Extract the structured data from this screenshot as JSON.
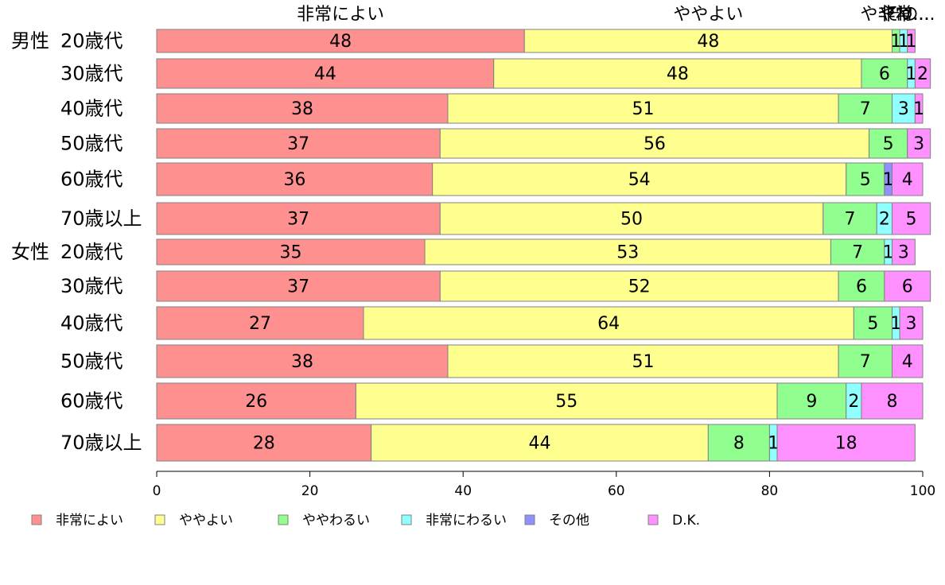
{
  "chart_data": {
    "type": "bar",
    "orientation": "horizontal",
    "stacked": true,
    "categories": [
      {
        "group": "男性",
        "label": "20歳代"
      },
      {
        "group": "",
        "label": "30歳代"
      },
      {
        "group": "",
        "label": "40歳代"
      },
      {
        "group": "",
        "label": "50歳代"
      },
      {
        "group": "",
        "label": "60歳代"
      },
      {
        "group": "",
        "label": "70歳以上"
      },
      {
        "group": "女性",
        "label": "20歳代"
      },
      {
        "group": "",
        "label": "30歳代"
      },
      {
        "group": "",
        "label": "40歳代"
      },
      {
        "group": "",
        "label": "50歳代"
      },
      {
        "group": "",
        "label": "60歳代"
      },
      {
        "group": "",
        "label": "70歳以上"
      }
    ],
    "series": [
      {
        "name": "非常によい",
        "color": "#ff9090",
        "values": [
          48,
          44,
          38,
          37,
          36,
          37,
          35,
          37,
          27,
          38,
          26,
          28
        ]
      },
      {
        "name": "ややよい",
        "color": "#ffff90",
        "values": [
          48,
          48,
          51,
          56,
          54,
          50,
          53,
          52,
          64,
          51,
          55,
          44
        ]
      },
      {
        "name": "ややわるい",
        "color": "#90ff90",
        "values": [
          1,
          6,
          7,
          5,
          5,
          7,
          7,
          6,
          5,
          7,
          9,
          8
        ]
      },
      {
        "name": "非常にわるい",
        "color": "#90ffff",
        "values": [
          1,
          1,
          3,
          0,
          0,
          2,
          1,
          0,
          1,
          0,
          2,
          1
        ]
      },
      {
        "name": "その他",
        "color": "#9090ff",
        "values": [
          0,
          0,
          0,
          0,
          1,
          0,
          0,
          0,
          0,
          0,
          0,
          0
        ]
      },
      {
        "name": "D.K.",
        "color": "#ff90ff",
        "values": [
          1,
          2,
          1,
          3,
          4,
          5,
          3,
          6,
          3,
          4,
          8,
          18
        ]
      }
    ],
    "bar_value_labels": [
      [
        "48",
        "48",
        "1",
        "1",
        "",
        "1"
      ],
      [
        "44",
        "48",
        "6",
        "1",
        "",
        "2"
      ],
      [
        "38",
        "51",
        "7",
        "3",
        "",
        "1"
      ],
      [
        "37",
        "56",
        "5",
        "",
        "",
        "3"
      ],
      [
        "36",
        "54",
        "5",
        "",
        "1",
        "4"
      ],
      [
        "37",
        "50",
        "7",
        "2",
        "",
        "5"
      ],
      [
        "35",
        "53",
        "7",
        "1",
        "",
        "3"
      ],
      [
        "37",
        "52",
        "6",
        "",
        "",
        "6"
      ],
      [
        "27",
        "64",
        "5",
        "1",
        "",
        "3"
      ],
      [
        "38",
        "51",
        "7",
        "",
        "",
        "4"
      ],
      [
        "26",
        "55",
        "9",
        "2",
        "",
        "8"
      ],
      [
        "28",
        "44",
        "8",
        "1",
        "",
        "18"
      ]
    ],
    "top_labels": [
      "非常によい",
      "ややよい",
      "ややわ...",
      "非常...",
      "その..."
    ],
    "xlim": [
      0,
      100
    ],
    "xticks": [
      0,
      20,
      40,
      60,
      80,
      100
    ],
    "grid": false,
    "legend_position": "bottom"
  }
}
